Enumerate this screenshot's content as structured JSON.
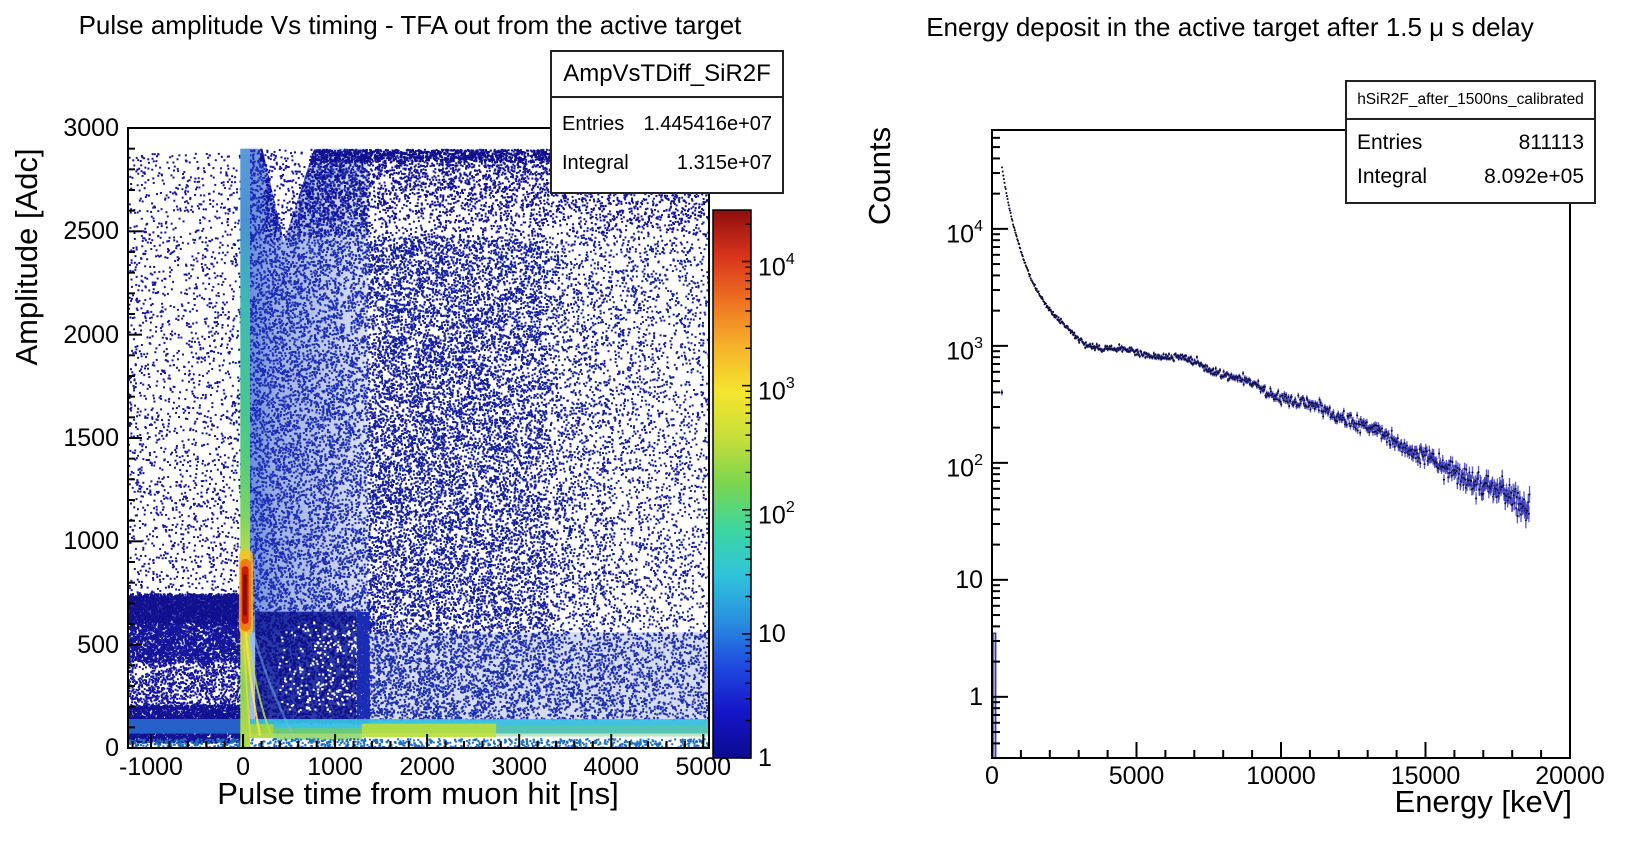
{
  "figure": {
    "background": "#ffffff",
    "frame_color": "#000000"
  },
  "left_pad": {
    "stats": {
      "name": "AmpVsTDiff_SiR2F",
      "entries_label": "Entries",
      "entries_value": "1.445416e+07",
      "integral_label": "Integral",
      "integral_value": "1.315e+07"
    }
  },
  "right_pad": {
    "stats": {
      "name": "hSiR2F_after_1500ns_calibrated",
      "entries_label": "Entries",
      "entries_value": "811113",
      "integral_label": "Integral",
      "integral_value": "8.092e+05"
    }
  },
  "chart_data": [
    {
      "type": "heatmap",
      "title": "Pulse amplitude Vs timing - TFA out from the active target",
      "xlabel": "Pulse time from muon hit [ns]",
      "ylabel": "Amplitude [Adc]",
      "xlim": [
        -1250,
        5062
      ],
      "ylim": [
        0,
        3000
      ],
      "x_ticks": [
        -1000,
        0,
        1000,
        2000,
        3000,
        4000,
        5000
      ],
      "x_minor_step": 200,
      "y_ticks": [
        0,
        500,
        1000,
        1500,
        2000,
        2500,
        3000
      ],
      "y_minor_step": 100,
      "grid": false,
      "z_scale": "log",
      "zlim": [
        1,
        26000
      ],
      "z_ticks": [
        1,
        10,
        100,
        1000,
        10000
      ],
      "colorbar_palette": [
        "#0b0b8f",
        "#1515c8",
        "#1f49e0",
        "#2a8fe0",
        "#2fc4db",
        "#3cd6a0",
        "#7ad64e",
        "#c6de3a",
        "#f4e62e",
        "#f6b32a",
        "#ee7222",
        "#d8331a",
        "#8f0e0e"
      ],
      "speckle_color": "#14149b",
      "features": [
        {
          "kind": "hgrad",
          "t": [
            25,
            1360
          ],
          "a": [
            560,
            2900
          ],
          "stops": [
            [
              0,
              "rgba(72,118,214,0.85)"
            ],
            [
              0.25,
              "rgba(58,95,200,0.5)"
            ],
            [
              1,
              "rgba(40,70,180,0.16)"
            ]
          ]
        },
        {
          "kind": "speckle",
          "t": [
            30,
            1360
          ],
          "a": [
            620,
            2900
          ],
          "n": 8500,
          "color": "#1b2db4",
          "fadeX": [
            1,
            0.8
          ]
        },
        {
          "kind": "fill",
          "t": [
            1280,
            5062
          ],
          "a": [
            140,
            560
          ],
          "color": "rgba(42,74,186,0.20)"
        },
        {
          "kind": "speckle",
          "t": [
            1280,
            5062
          ],
          "a": [
            140,
            560
          ],
          "n": 5200,
          "color": "#1c2eae",
          "fadeX": [
            1,
            0.55
          ]
        },
        {
          "kind": "speckle",
          "t": [
            1360,
            3300
          ],
          "a": [
            560,
            2480
          ],
          "n": 12500,
          "color": "#141ea0",
          "fadeX": [
            1,
            0.75
          ]
        },
        {
          "kind": "speckle",
          "t": [
            3300,
            5062
          ],
          "a": [
            560,
            2480
          ],
          "n": 5200,
          "color": "#141ea0",
          "fadeX": [
            1,
            0.5
          ]
        },
        {
          "kind": "speckle",
          "t": [
            -1250,
            -20
          ],
          "a": [
            140,
            2880
          ],
          "n": 2400,
          "color": "#1414a0"
        },
        {
          "kind": "fill",
          "t": [
            -1250,
            25
          ],
          "a": [
            615,
            735
          ],
          "color": "rgba(18,18,148,0.78)"
        },
        {
          "kind": "speckle",
          "t": [
            -1250,
            25
          ],
          "a": [
            600,
            750
          ],
          "n": 2200,
          "color": "#111190"
        },
        {
          "kind": "speckle",
          "t": [
            -1250,
            40
          ],
          "a": [
            420,
            600
          ],
          "n": 2400,
          "color": "#15159c"
        },
        {
          "kind": "speckle",
          "t": [
            -1250,
            0
          ],
          "a": [
            30,
            210
          ],
          "n": 3200,
          "color": "#121294"
        },
        {
          "kind": "speckle",
          "t": [
            -1250,
            -20
          ],
          "a": [
            210,
            420
          ],
          "n": 800,
          "color": "#1414a0"
        },
        {
          "kind": "fill",
          "t": [
            130,
            1230
          ],
          "a": [
            120,
            660
          ],
          "color": "rgba(26,42,160,0.93)"
        },
        {
          "kind": "speckle",
          "t": [
            130,
            1230
          ],
          "a": [
            120,
            660
          ],
          "n": 1800,
          "color": "#10108a"
        },
        {
          "kind": "speckle",
          "t": [
            380,
            1230
          ],
          "a": [
            180,
            620
          ],
          "n": 330,
          "color": "#ffffff",
          "fadeX": [
            0.4,
            1
          ]
        },
        {
          "kind": "fill",
          "t": [
            65,
            132
          ],
          "a": [
            120,
            620
          ],
          "color": "rgba(72,120,205,0.5)"
        },
        {
          "kind": "speckle",
          "t": [
            1230,
            1360
          ],
          "a": [
            120,
            660
          ],
          "n": 1400,
          "color": "#1b2db4"
        },
        {
          "kind": "speckle",
          "t": [
            180,
            5062
          ],
          "a": [
            2840,
            2900
          ],
          "n": 2300,
          "color": "#10108e"
        },
        {
          "kind": "speckle",
          "t": [
            240,
            5062
          ],
          "a": [
            2480,
            2840
          ],
          "n": 5200,
          "color": "#131398",
          "fadeY": [
            1,
            0.35
          ]
        },
        {
          "kind": "poly",
          "pts": [
            [
              205,
              2910
            ],
            [
              445,
              2450
            ],
            [
              780,
              2910
            ]
          ],
          "color": "#ffffff"
        },
        {
          "kind": "speckle",
          "t": [
            205,
            780
          ],
          "a": [
            2460,
            2900
          ],
          "n": 260,
          "color": "#1414a0"
        },
        {
          "kind": "fill",
          "t": [
            -1250,
            5062
          ],
          "a": [
            70,
            140
          ],
          "color": "rgba(53,191,224,0.95)"
        },
        {
          "kind": "fill",
          "t": [
            -1250,
            -5
          ],
          "a": [
            70,
            140
          ],
          "color": "rgba(34,87,196,0.9)"
        },
        {
          "kind": "fill",
          "t": [
            1290,
            2750
          ],
          "a": [
            52,
            118
          ],
          "color": "rgba(185,224,60,0.92)"
        },
        {
          "kind": "fill",
          "t": [
            -15,
            330
          ],
          "a": [
            48,
            115
          ],
          "color": "rgba(168,216,58,0.9)"
        },
        {
          "kind": "fill",
          "t": [
            330,
            1290
          ],
          "a": [
            40,
            95
          ],
          "color": "rgba(126,205,78,0.75)"
        },
        {
          "kind": "fill",
          "t": [
            2750,
            5062
          ],
          "a": [
            55,
            110
          ],
          "color": "rgba(110,200,130,0.45)"
        },
        {
          "kind": "speckle",
          "t": [
            -1250,
            5062
          ],
          "a": [
            4,
            48
          ],
          "n": 900,
          "color": "#1a6fc0"
        },
        {
          "kind": "streak",
          "pts": [
            [
              70,
              620
            ],
            [
              260,
              300
            ],
            [
              540,
              70
            ]
          ],
          "color": "rgba(120,190,230,0.45)",
          "w": 2.5
        },
        {
          "kind": "colgrad",
          "t": [
            -30,
            75
          ],
          "a": [
            0,
            2900
          ],
          "stops": [
            [
              2900,
              "#5a9bd8"
            ],
            [
              2550,
              "#4a93d2"
            ],
            [
              2150,
              "#3fb9b4"
            ],
            [
              1750,
              "#45c497"
            ],
            [
              1400,
              "#55cc7c"
            ],
            [
              1120,
              "#7cd562"
            ],
            [
              980,
              "#abd952"
            ],
            [
              880,
              "#dcdc46"
            ],
            [
              800,
              "#f4b434"
            ],
            [
              700,
              "#f2912c"
            ],
            [
              620,
              "#eeab34"
            ],
            [
              540,
              "#d8cc3e"
            ],
            [
              430,
              "#abd74e"
            ],
            [
              300,
              "#8ed054"
            ],
            [
              160,
              "#9ed84e"
            ],
            [
              0,
              "#b4dc46"
            ]
          ]
        },
        {
          "kind": "capsule",
          "t": [
            -45,
            110
          ],
          "a": [
            545,
            960
          ],
          "color": "rgba(247,193,40,0.8)"
        },
        {
          "kind": "capsule",
          "t": [
            -30,
            85
          ],
          "a": [
            565,
            915
          ],
          "color": "rgba(238,110,20,0.85)"
        },
        {
          "kind": "capsule",
          "t": [
            -15,
            60
          ],
          "a": [
            600,
            880
          ],
          "color": "#c81e08"
        },
        {
          "kind": "capsule",
          "t": [
            0,
            40
          ],
          "a": [
            640,
            840
          ],
          "color": "#8a0d03"
        },
        {
          "kind": "streak",
          "pts": [
            [
              30,
              560
            ],
            [
              90,
              260
            ],
            [
              185,
              60
            ]
          ],
          "color": "rgba(255,225,74,0.9)",
          "w": 2.2
        },
        {
          "kind": "streak",
          "pts": [
            [
              48,
              540
            ],
            [
              150,
              240
            ],
            [
              310,
              55
            ]
          ],
          "color": "rgba(184,224,74,0.85)",
          "w": 2
        },
        {
          "kind": "streak",
          "pts": [
            [
              14,
              500
            ],
            [
              40,
              250
            ],
            [
              80,
              55
            ]
          ],
          "color": "rgba(232,216,74,0.8)",
          "w": 1.8
        }
      ]
    },
    {
      "type": "scatter",
      "title": "Energy deposit in the active target after 1.5 μ s delay",
      "xlabel": "Energy [keV]",
      "ylabel": "Counts",
      "xlim": [
        0,
        20000
      ],
      "x_ticks": [
        0,
        5000,
        10000,
        15000,
        20000
      ],
      "x_minor_step": 1000,
      "y_scale": "log",
      "ylim": [
        0.3,
        70000
      ],
      "y_ticks": [
        1,
        10,
        100,
        1000,
        10000
      ],
      "grid": false,
      "marker_color": "#0d0d30",
      "error_bar_color": "rgba(56,56,190,0.8)",
      "bin_width_keV": 21,
      "spectrum_anchors": {
        "energy_keV": [
          350,
          420,
          500,
          600,
          750,
          900,
          1100,
          1300,
          1500,
          1700,
          1900,
          2100,
          2400,
          2700,
          3000,
          3500,
          4000,
          4500,
          5000,
          5500,
          6000,
          6500,
          7000,
          7500,
          8000,
          8500,
          9000,
          9500,
          10000,
          10500,
          11000,
          11500,
          12000,
          12500,
          13000,
          13500,
          14000,
          14500,
          15000,
          15500,
          16000,
          16500,
          17000,
          17500,
          18000,
          18300,
          18600
        ],
        "counts": [
          33000,
          26000,
          20000,
          15000,
          10500,
          7800,
          5400,
          4000,
          3150,
          2600,
          2200,
          1900,
          1600,
          1350,
          1160,
          1060,
          1000,
          950,
          920,
          860,
          800,
          740,
          680,
          620,
          560,
          515,
          480,
          430,
          390,
          348,
          310,
          276,
          245,
          216,
          190,
          168,
          148,
          130,
          114,
          100,
          88,
          76,
          66,
          57,
          48,
          42,
          36
        ]
      },
      "first_bin": {
        "energy_keV": 80,
        "width_keV": 100,
        "counts": 3.5
      },
      "outlier_point": {
        "energy_keV": 340,
        "counts": 400
      }
    }
  ]
}
